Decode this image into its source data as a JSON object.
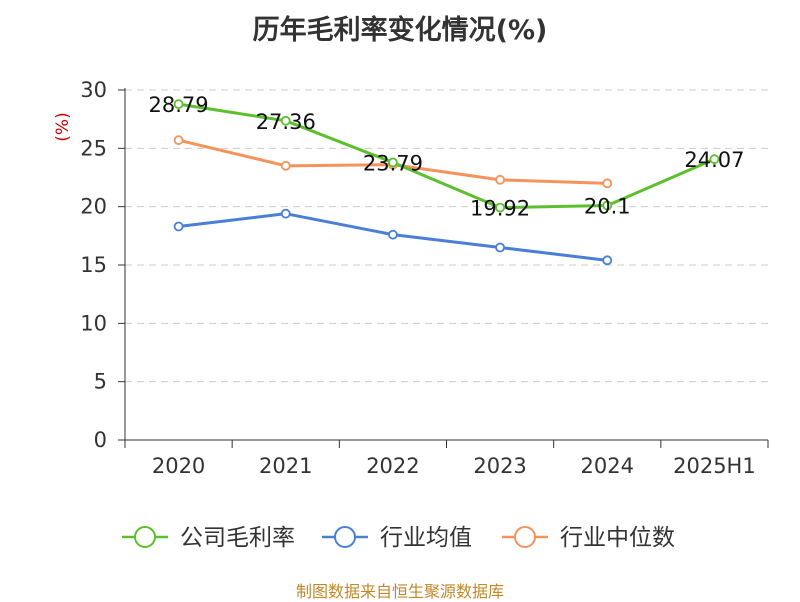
{
  "chart_data": {
    "type": "line",
    "title": "历年毛利率变化情况(%)",
    "ylabel": "(%)",
    "ylim": [
      0,
      30
    ],
    "yticks": [
      0,
      5,
      10,
      15,
      20,
      25,
      30
    ],
    "categories": [
      "2020",
      "2021",
      "2022",
      "2023",
      "2024",
      "2025H1"
    ],
    "grid": "horizontal dashed",
    "legend_position": "bottom",
    "series": [
      {
        "name": "公司毛利率",
        "color": "#5cc02e",
        "values": [
          28.79,
          27.36,
          23.79,
          19.92,
          20.1,
          24.07
        ],
        "labels": [
          "28.79",
          "27.36",
          "23.79",
          "19.92",
          "20.1",
          "24.07"
        ]
      },
      {
        "name": "行业均值",
        "color": "#4a7fd8",
        "values": [
          18.3,
          19.4,
          17.6,
          16.5,
          15.4,
          null
        ]
      },
      {
        "name": "行业中位数",
        "color": "#f5935a",
        "values": [
          25.7,
          23.5,
          23.6,
          22.3,
          22.0,
          null
        ]
      }
    ]
  },
  "footer": {
    "source": "制图数据来自恒生聚源数据库"
  }
}
